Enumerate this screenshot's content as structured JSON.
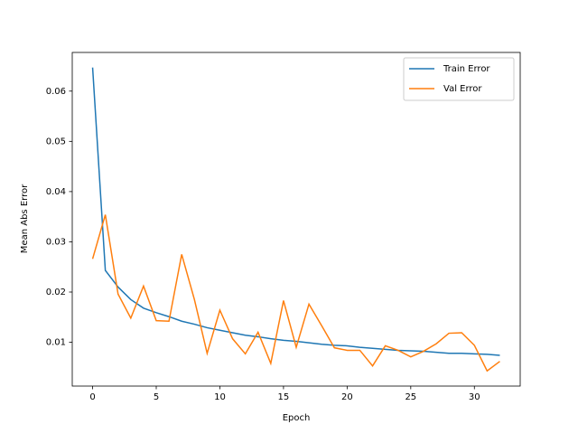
{
  "chart_data": {
    "type": "line",
    "xlabel": "Epoch",
    "ylabel": "Mean Abs Error",
    "x": [
      0,
      1,
      2,
      3,
      4,
      5,
      6,
      7,
      8,
      9,
      10,
      11,
      12,
      13,
      14,
      15,
      16,
      17,
      18,
      19,
      20,
      21,
      22,
      23,
      24,
      25,
      26,
      27,
      28,
      29,
      30,
      31,
      32
    ],
    "series": [
      {
        "name": "Train Error",
        "color": "#1f77b4",
        "values": [
          0.0647,
          0.0243,
          0.021,
          0.0185,
          0.0168,
          0.0159,
          0.0151,
          0.0142,
          0.0136,
          0.0129,
          0.0124,
          0.0119,
          0.0114,
          0.0111,
          0.0107,
          0.0104,
          0.0102,
          0.0099,
          0.0096,
          0.0094,
          0.0093,
          0.009,
          0.0088,
          0.0086,
          0.0084,
          0.0083,
          0.0082,
          0.008,
          0.0078,
          0.0078,
          0.0077,
          0.0076,
          0.0074
        ]
      },
      {
        "name": "Val Error",
        "color": "#ff7f0e",
        "values": [
          0.0266,
          0.0354,
          0.0196,
          0.0148,
          0.0212,
          0.0143,
          0.0142,
          0.0275,
          0.0185,
          0.0078,
          0.0164,
          0.0107,
          0.0077,
          0.012,
          0.0058,
          0.0183,
          0.009,
          0.0176,
          0.0133,
          0.0089,
          0.0084,
          0.0084,
          0.0053,
          0.0093,
          0.0084,
          0.0071,
          0.0082,
          0.0097,
          0.0118,
          0.0119,
          0.0094,
          0.0043,
          0.0062
        ]
      }
    ],
    "xlim": [
      -1.6,
      33.6
    ],
    "xticks": [
      0,
      5,
      10,
      15,
      20,
      25,
      30
    ],
    "ylim": [
      0.00128,
      0.0677
    ],
    "yticks": [
      0.01,
      0.02,
      0.03,
      0.04,
      0.05,
      0.06
    ],
    "legend": "upper right"
  }
}
